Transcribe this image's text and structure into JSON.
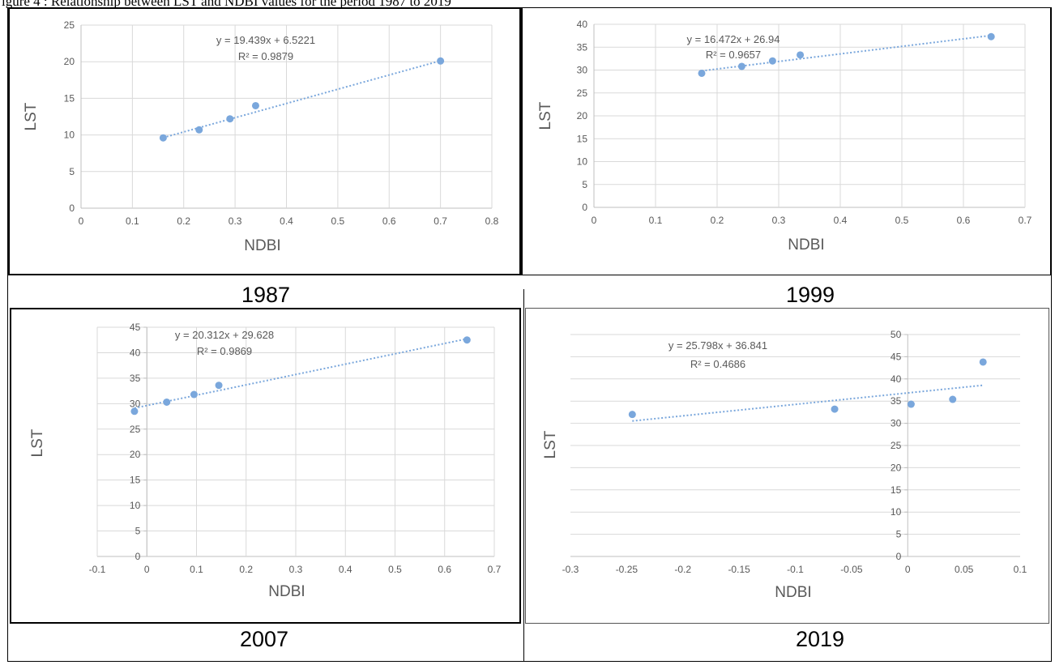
{
  "caption": "igure 4 : Relationship between LST and NDBI values for the period 1987 to 2019",
  "colors": {
    "point": "#7aa7dc",
    "trend": "#7aa7dc",
    "grid": "#d9d9d9",
    "axis": "#bfbfbf",
    "text": "#595959"
  },
  "chart_data": [
    {
      "type": "scatter",
      "year_label": "1987",
      "xlabel": "NDBI",
      "ylabel": "LST",
      "xlim": [
        0,
        0.8
      ],
      "ylim": [
        0,
        25
      ],
      "xticks": [
        0,
        0.1,
        0.2,
        0.3,
        0.4,
        0.5,
        0.6,
        0.7,
        0.8
      ],
      "yticks": [
        0,
        5,
        10,
        15,
        20,
        25
      ],
      "x_tick_labels": [
        "0",
        "0.1",
        "0.2",
        "0.3",
        "0.4",
        "0.5",
        "0.6",
        "0.7",
        "0.8"
      ],
      "y_tick_labels": [
        "0",
        "5",
        "10",
        "15",
        "20",
        "25"
      ],
      "points": [
        [
          0.16,
          9.6
        ],
        [
          0.23,
          10.7
        ],
        [
          0.29,
          12.2
        ],
        [
          0.34,
          14.0
        ],
        [
          0.7,
          20.1
        ]
      ],
      "trendline": {
        "slope": 19.439,
        "intercept": 6.5221,
        "x_range": [
          0.16,
          0.7
        ]
      },
      "equation": "y = 19.439x + 6.5221",
      "r_squared": "R² = 0.9879",
      "grid": true
    },
    {
      "type": "scatter",
      "year_label": "1999",
      "xlabel": "NDBI",
      "ylabel": "LST",
      "xlim": [
        0,
        0.7
      ],
      "ylim": [
        0,
        40
      ],
      "xticks": [
        0,
        0.1,
        0.2,
        0.3,
        0.4,
        0.5,
        0.6,
        0.7
      ],
      "yticks": [
        0,
        5,
        10,
        15,
        20,
        25,
        30,
        35,
        40
      ],
      "x_tick_labels": [
        "0",
        "0.1",
        "0.2",
        "0.3",
        "0.4",
        "0.5",
        "0.6",
        "0.7"
      ],
      "y_tick_labels": [
        "0",
        "5",
        "10",
        "15",
        "20",
        "25",
        "30",
        "35",
        "40"
      ],
      "points": [
        [
          0.175,
          29.3
        ],
        [
          0.24,
          30.8
        ],
        [
          0.29,
          32.0
        ],
        [
          0.335,
          33.3
        ],
        [
          0.645,
          37.3
        ]
      ],
      "trendline": {
        "slope": 16.472,
        "intercept": 26.94,
        "x_range": [
          0.175,
          0.645
        ]
      },
      "equation": "y = 16.472x + 26.94",
      "r_squared": "R² = 0.9657",
      "grid": true
    },
    {
      "type": "scatter",
      "year_label": "2007",
      "xlabel": "NDBI",
      "ylabel": "LST",
      "xlim": [
        -0.1,
        0.7
      ],
      "ylim": [
        0,
        45
      ],
      "xticks": [
        -0.1,
        0,
        0.1,
        0.2,
        0.3,
        0.4,
        0.5,
        0.6,
        0.7
      ],
      "yticks": [
        0,
        5,
        10,
        15,
        20,
        25,
        30,
        35,
        40,
        45
      ],
      "x_tick_labels": [
        "-0.1",
        "0",
        "0.1",
        "0.2",
        "0.3",
        "0.4",
        "0.5",
        "0.6",
        "0.7"
      ],
      "y_tick_labels": [
        "0",
        "5",
        "10",
        "15",
        "20",
        "25",
        "30",
        "35",
        "40",
        "45"
      ],
      "points": [
        [
          -0.025,
          28.5
        ],
        [
          0.04,
          30.3
        ],
        [
          0.095,
          31.8
        ],
        [
          0.145,
          33.6
        ],
        [
          0.645,
          42.5
        ]
      ],
      "trendline": {
        "slope": 20.312,
        "intercept": 29.628,
        "x_range": [
          -0.025,
          0.645
        ]
      },
      "equation": "y = 20.312x + 29.628",
      "r_squared": "R² = 0.9869",
      "grid": true
    },
    {
      "type": "scatter",
      "year_label": "2019",
      "xlabel": "NDBI",
      "ylabel": "LST",
      "xlim": [
        -0.3,
        0.1
      ],
      "ylim": [
        0,
        50
      ],
      "xticks": [
        -0.3,
        -0.25,
        -0.2,
        -0.15,
        -0.1,
        -0.05,
        0,
        0.05,
        0.1
      ],
      "yticks": [
        0,
        5,
        10,
        15,
        20,
        25,
        30,
        35,
        40,
        45,
        50
      ],
      "x_tick_labels": [
        "-0.3",
        "-0.25",
        "-0.2",
        "-0.15",
        "-0.1",
        "-0.05",
        "0",
        "0.05",
        "0.1"
      ],
      "y_tick_labels": [
        "0",
        "5",
        "10",
        "15",
        "20",
        "25",
        "30",
        "35",
        "40",
        "45",
        "50"
      ],
      "points": [
        [
          -0.245,
          32.0
        ],
        [
          -0.065,
          33.2
        ],
        [
          0.003,
          34.3
        ],
        [
          0.04,
          35.4
        ],
        [
          0.067,
          43.8
        ]
      ],
      "trendline": {
        "slope": 25.798,
        "intercept": 36.841,
        "x_range": [
          -0.245,
          0.067
        ]
      },
      "equation": "y = 25.798x + 36.841",
      "r_squared": "R² = 0.4686",
      "grid": true
    }
  ]
}
